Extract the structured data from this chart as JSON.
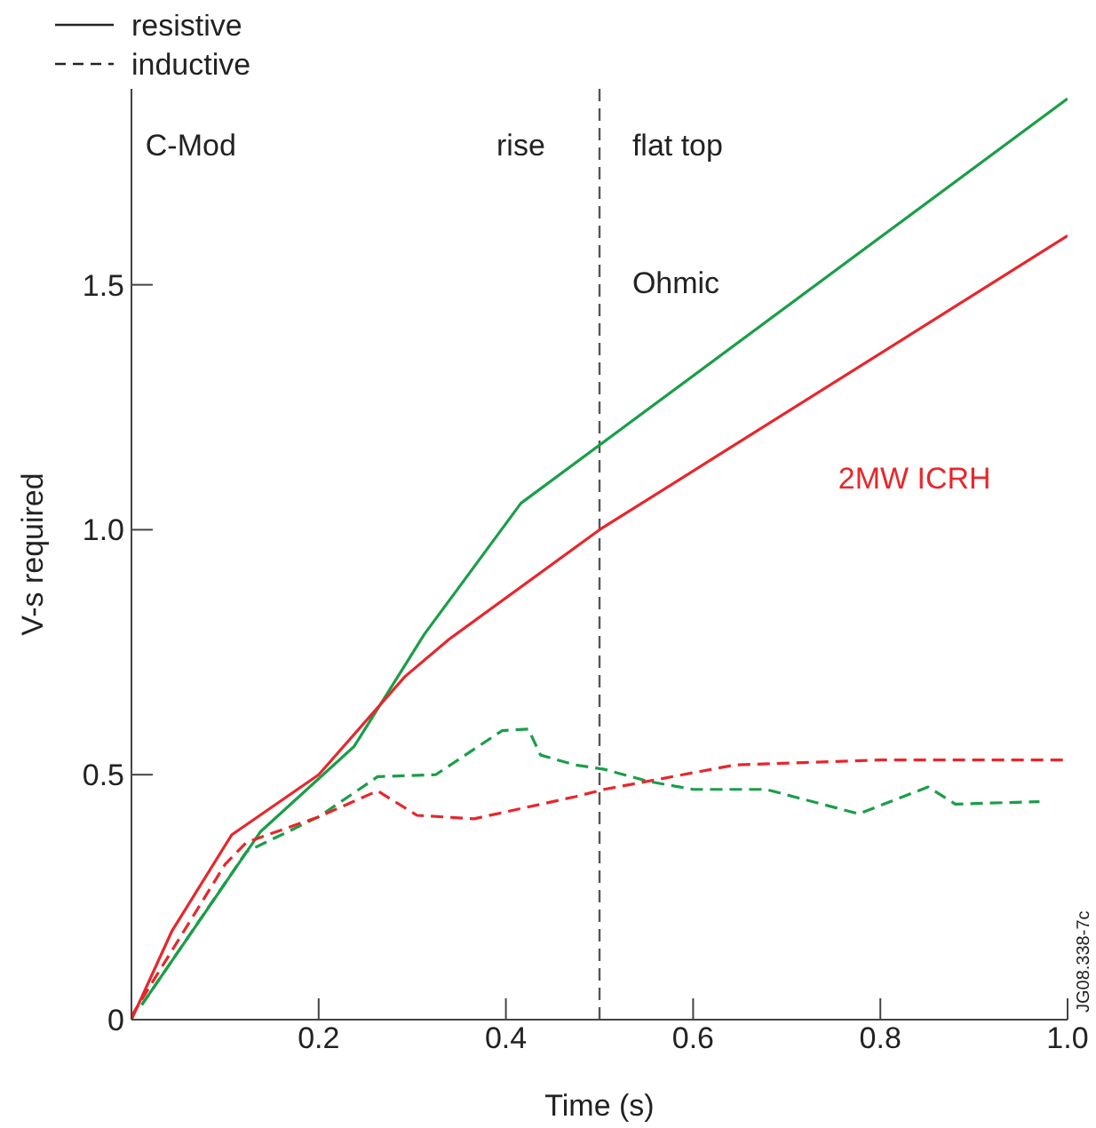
{
  "chart_data": {
    "type": "line",
    "xlabel": "Time (s)",
    "ylabel": "V-s required",
    "xlim": [
      0,
      1
    ],
    "xticks": [
      0.2,
      0.4,
      0.6,
      0.8,
      {
        "value": 1,
        "label": "1.0"
      }
    ],
    "ylim": [
      0,
      1.9
    ],
    "yticks": [
      0,
      0.5,
      {
        "value": 1,
        "label": "1.0"
      },
      1.5
    ],
    "grid": false,
    "legend": false,
    "marker": "none",
    "series": [
      {
        "color": "#1a9e48",
        "line_style": "solid",
        "x": [
          0.011,
          0.138,
          0.238,
          0.313,
          0.416,
          1.0
        ],
        "values": [
          0.03,
          0.384,
          0.558,
          0.787,
          1.054,
          1.88
        ]
      },
      {
        "color": "#e8262b",
        "line_style": "solid",
        "x": [
          0,
          0.043,
          0.107,
          0.2,
          0.292,
          0.339,
          0.5,
          1.0
        ],
        "values": [
          0.0,
          0.18,
          0.377,
          0.5,
          0.7,
          0.776,
          1.0,
          1.6
        ]
      },
      {
        "color": "#1a9e48",
        "line_style": "dashed",
        "x": [
          0.011,
          0.123,
          0.2,
          0.263,
          0.325,
          0.396,
          0.424,
          0.437,
          0.474,
          0.505,
          0.553,
          0.6,
          0.678,
          0.777,
          0.851,
          0.88,
          0.97
        ],
        "values": [
          0.03,
          0.343,
          0.414,
          0.496,
          0.5,
          0.59,
          0.593,
          0.54,
          0.52,
          0.511,
          0.486,
          0.47,
          0.47,
          0.42,
          0.475,
          0.44,
          0.445
        ]
      },
      {
        "color": "#e8262b",
        "line_style": "dashed",
        "x": [
          0,
          0.1,
          0.123,
          0.2,
          0.263,
          0.305,
          0.366,
          0.474,
          0.505,
          0.645,
          0.798,
          1.0
        ],
        "values": [
          0.007,
          0.317,
          0.362,
          0.414,
          0.467,
          0.417,
          0.41,
          0.455,
          0.47,
          0.52,
          0.53,
          0.53
        ]
      }
    ],
    "ref_lines": [
      {
        "axis": "x",
        "value": 0.5,
        "color": "#555555",
        "line_style": "dashed"
      }
    ],
    "annotations": [
      "resistive",
      "inductive",
      "JG08.338-7c",
      "C-Mod",
      "rise",
      "flat top",
      "Ohmic",
      "2MW ICRH"
    ]
  }
}
